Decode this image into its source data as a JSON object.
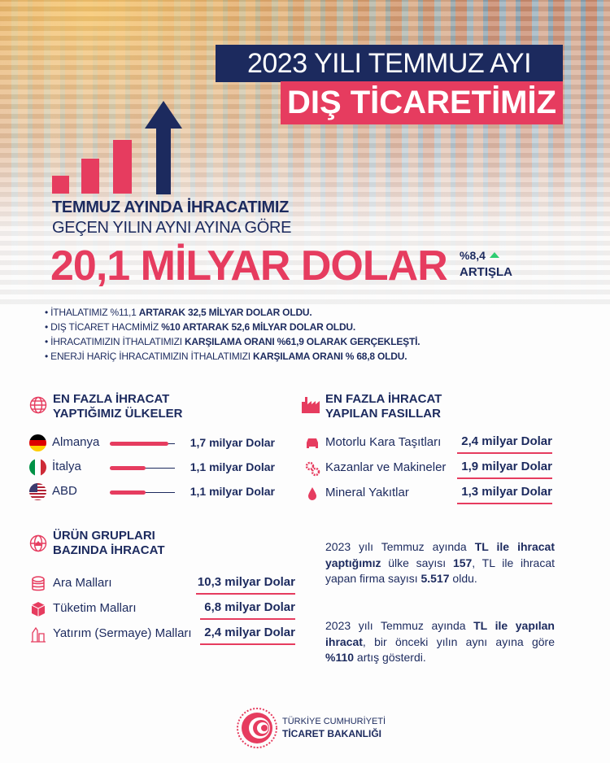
{
  "header": {
    "title_line1": "2023 YILI TEMMUZ AYI",
    "title_line2": "DIŞ TİCARETİMİZ"
  },
  "headline": {
    "line1": "TEMMUZ AYINDA İHRACATIMIZ",
    "line2": "GEÇEN YILIN AYNI AYINA GÖRE",
    "amount": "20,1 MİLYAR DOLAR",
    "change": "%8,4",
    "change_label": "ARTIŞLA"
  },
  "bullets": [
    {
      "normal": "İTHALATIMIZ %11,1 ",
      "bold": "ARTARAK 32,5 MİLYAR DOLAR OLDU."
    },
    {
      "normal": "DIŞ TİCARET HACMİMİZ ",
      "bold": "%10 ARTARAK 52,6 MİLYAR DOLAR OLDU."
    },
    {
      "normal": "İHRACATIMIZIN İTHALATIMIZI ",
      "bold": "KARŞILAMA ORANI %61,9 OLARAK GERÇEKLEŞTİ."
    },
    {
      "normal": "ENERJİ HARİÇ İHRACATIMIZIN İTHALATIMIZI ",
      "bold": "KARŞILAMA ORANI % 68,8 OLDU."
    }
  ],
  "countries": {
    "title_line1": "EN FAZLA İHRACAT",
    "title_line2": "YAPTIĞIMIZ ÜLKELER",
    "icon": "globe-icon",
    "items": [
      {
        "name": "Almanya",
        "value": "1,7 milyar Dolar",
        "share": 0.9
      },
      {
        "name": "İtalya",
        "value": "1,1 milyar Dolar",
        "share": 0.55
      },
      {
        "name": "ABD",
        "value": "1,1 milyar Dolar",
        "share": 0.55
      }
    ]
  },
  "chapters": {
    "title_line1": "EN FAZLA İHRACAT",
    "title_line2": "YAPILAN FASILLAR",
    "icon": "factory-icon",
    "items": [
      {
        "name": "Motorlu Kara Taşıtları",
        "value": "2,4 milyar Dolar",
        "icon": "car-icon"
      },
      {
        "name": "Kazanlar ve Makineler",
        "value": "1,9 milyar Dolar",
        "icon": "gears-icon"
      },
      {
        "name": "Mineral Yakıtlar",
        "value": "1,3 milyar Dolar",
        "icon": "drop-icon"
      }
    ]
  },
  "products": {
    "title_line1": "ÜRÜN GRUPLARI",
    "title_line2": "BAZINDA İHRACAT",
    "icon": "globe-export-icon",
    "items": [
      {
        "name": "Ara Malları",
        "value": "10,3 milyar Dolar",
        "icon": "coins-icon"
      },
      {
        "name": "Tüketim Malları",
        "value": "6,8 milyar Dolar",
        "icon": "box-icon"
      },
      {
        "name": "Yatırım (Sermaye) Malları",
        "value": "2,4 milyar Dolar",
        "icon": "industry-icon"
      }
    ]
  },
  "tl": {
    "p1": [
      "2023 yılı Temmuz ayında ",
      "TL ile ihracat yaptığımız",
      " ülke sayısı ",
      "157",
      ", TL ile ihracat yapan firma sayısı ",
      "5.517",
      " oldu."
    ],
    "p2": [
      "2023 yılı Temmuz ayında ",
      "TL ile yapılan ihracat",
      ", bir önceki yılın aynı ayına göre ",
      "%110",
      " artış gösterdi."
    ]
  },
  "footer": {
    "line1": "TÜRKİYE CUMHURİYETİ",
    "line2": "TİCARET BAKANLIĞI"
  },
  "colors": {
    "navy": "#1c2a5e",
    "accent": "#e63c5f",
    "up": "#2ecc71"
  }
}
